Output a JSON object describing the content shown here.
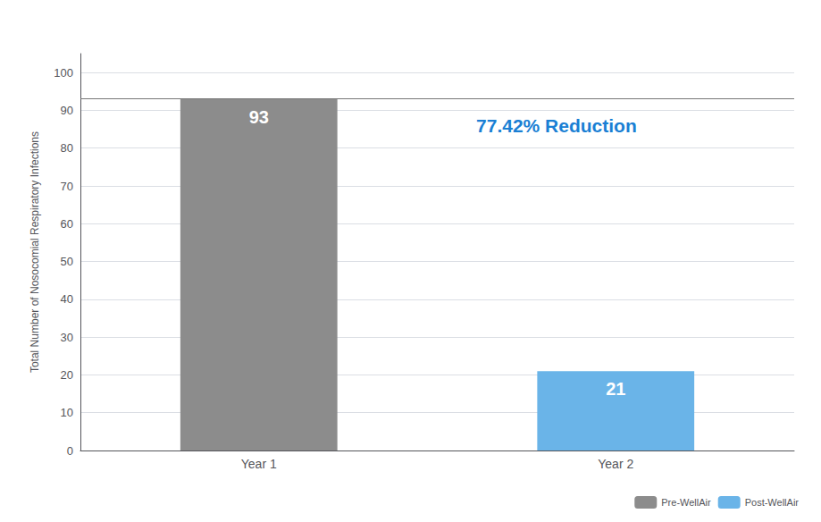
{
  "chart_data": {
    "type": "bar",
    "ylabel": "Total Number of Nosocomial Respiratory Infections",
    "categories": [
      "Year 1",
      "Year 2"
    ],
    "series": [
      {
        "name": "Pre-WellAir",
        "color": "#8c8c8c",
        "values": [
          93,
          null
        ]
      },
      {
        "name": "Post-WellAir",
        "color": "#6ab4e8",
        "values": [
          null,
          21
        ]
      }
    ],
    "ylim": [
      0,
      105
    ],
    "yticks": [
      0,
      10,
      20,
      30,
      40,
      50,
      60,
      70,
      80,
      90,
      100
    ],
    "grid": true,
    "legend": "lower right",
    "data_labels": true,
    "annotations": [
      {
        "text": "77.42% Reduction",
        "color": "#1a7fd4"
      }
    ],
    "lines": [
      {
        "y": 93
      }
    ]
  }
}
